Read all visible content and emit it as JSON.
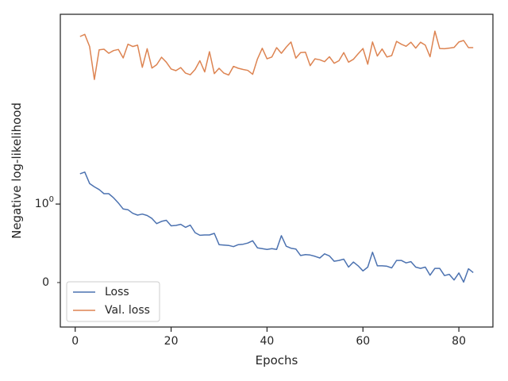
{
  "chart_data": {
    "type": "line",
    "xlabel": "Epochs",
    "ylabel": "Negative log-likelihood",
    "yscale": "log",
    "xlim": [
      -3.1,
      87.1
    ],
    "ylim": [
      0.705,
      1.715
    ],
    "xticks": [
      0,
      20,
      40,
      60,
      80
    ],
    "xtick_labels": [
      "0",
      "20",
      "40",
      "60",
      "80"
    ],
    "yticks": [
      1.0
    ],
    "ytick_major": "10",
    "ytick_exp": "0",
    "ytick_minor": [
      0.8
    ],
    "ytick_minor_label": "0",
    "grid": false,
    "legend": "lower-left",
    "x": [
      1,
      2,
      3,
      4,
      5,
      6,
      7,
      8,
      9,
      10,
      11,
      12,
      13,
      14,
      15,
      16,
      17,
      18,
      19,
      20,
      21,
      22,
      23,
      24,
      25,
      26,
      27,
      28,
      29,
      30,
      31,
      32,
      33,
      34,
      35,
      36,
      37,
      38,
      39,
      40,
      41,
      42,
      43,
      44,
      45,
      46,
      47,
      48,
      49,
      50,
      51,
      52,
      53,
      54,
      55,
      56,
      57,
      58,
      59,
      60,
      61,
      62,
      63,
      64,
      65,
      66,
      67,
      68,
      69,
      70,
      71,
      72,
      73,
      74,
      75,
      76,
      77,
      78,
      79,
      80,
      81,
      82,
      83
    ],
    "series": [
      {
        "name": "Loss",
        "color": "#4c72b0",
        "values": [
          1.09,
          1.095,
          1.06,
          1.05,
          1.042,
          1.03,
          1.03,
          1.018,
          1.003,
          0.986,
          0.984,
          0.974,
          0.969,
          0.972,
          0.968,
          0.96,
          0.946,
          0.952,
          0.955,
          0.94,
          0.941,
          0.944,
          0.936,
          0.942,
          0.922,
          0.915,
          0.916,
          0.916,
          0.92,
          0.891,
          0.89,
          0.889,
          0.886,
          0.891,
          0.892,
          0.895,
          0.901,
          0.883,
          0.881,
          0.879,
          0.881,
          0.879,
          0.914,
          0.887,
          0.882,
          0.88,
          0.864,
          0.866,
          0.865,
          0.862,
          0.858,
          0.868,
          0.863,
          0.85,
          0.852,
          0.855,
          0.836,
          0.848,
          0.839,
          0.827,
          0.836,
          0.872,
          0.839,
          0.839,
          0.838,
          0.834,
          0.852,
          0.852,
          0.846,
          0.849,
          0.836,
          0.833,
          0.836,
          0.817,
          0.833,
          0.833,
          0.816,
          0.819,
          0.806,
          0.822,
          0.801,
          0.832,
          0.823
        ]
      },
      {
        "name": "Val. loss",
        "color": "#dd8452",
        "values": [
          1.61,
          1.62,
          1.565,
          1.425,
          1.55,
          1.553,
          1.535,
          1.547,
          1.552,
          1.515,
          1.575,
          1.565,
          1.571,
          1.475,
          1.555,
          1.472,
          1.486,
          1.518,
          1.497,
          1.468,
          1.461,
          1.474,
          1.451,
          1.444,
          1.466,
          1.503,
          1.456,
          1.542,
          1.449,
          1.471,
          1.451,
          1.443,
          1.479,
          1.471,
          1.466,
          1.462,
          1.446,
          1.51,
          1.557,
          1.511,
          1.519,
          1.56,
          1.535,
          1.562,
          1.585,
          1.514,
          1.538,
          1.54,
          1.482,
          1.511,
          1.507,
          1.499,
          1.52,
          1.492,
          1.503,
          1.538,
          1.497,
          1.509,
          1.533,
          1.556,
          1.488,
          1.585,
          1.523,
          1.554,
          1.519,
          1.525,
          1.588,
          1.575,
          1.566,
          1.584,
          1.558,
          1.584,
          1.571,
          1.52,
          1.635,
          1.556,
          1.555,
          1.558,
          1.561,
          1.585,
          1.592,
          1.56,
          1.56
        ]
      }
    ]
  }
}
